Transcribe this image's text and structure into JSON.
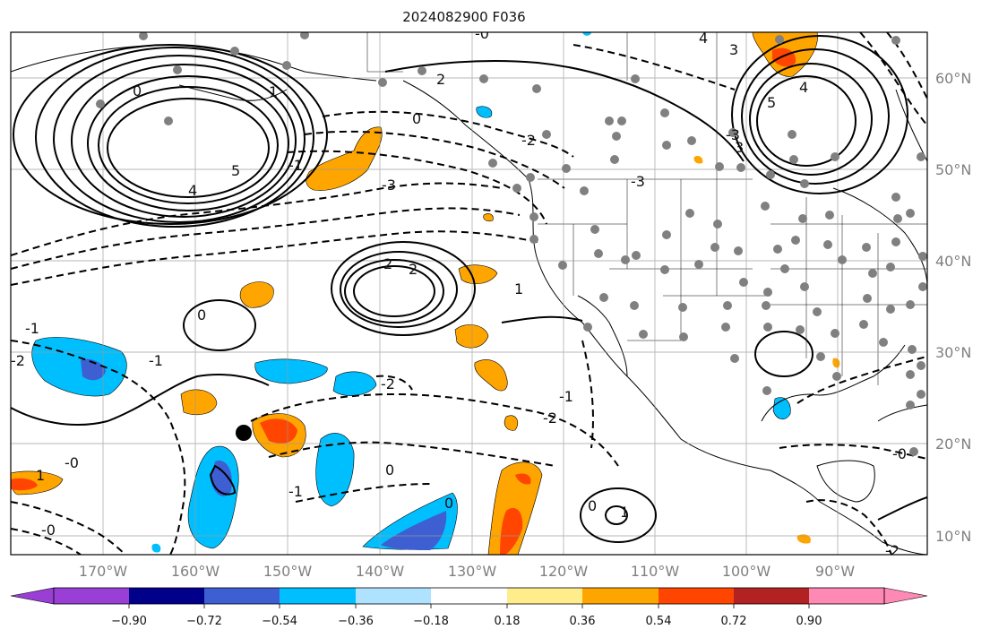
{
  "title": "2024082900 F036",
  "latitude_labels": [
    "60°N",
    "50°N",
    "40°N",
    "30°N",
    "20°N",
    "10°N"
  ],
  "longitude_labels": [
    "170°W",
    "160°W",
    "150°W",
    "140°W",
    "130°W",
    "120°W",
    "110°W",
    "100°W",
    "90°W"
  ],
  "colorbar": {
    "ticks": [
      "−0.90",
      "−0.72",
      "−0.54",
      "−0.36",
      "−0.18",
      "0.18",
      "0.36",
      "0.54",
      "0.72",
      "0.90"
    ],
    "colors": [
      "#9a3fd6",
      "#00008b",
      "#3d5fd1",
      "#00bfff",
      "#aee2ff",
      "#ffffff",
      "#ffec8b",
      "#ffa500",
      "#ff4500",
      "#b22222",
      "#ff89b5"
    ]
  },
  "contour_labels": {
    "solid": [
      "0",
      "1",
      "2",
      "3",
      "4",
      "5",
      "2",
      "2",
      "1",
      "0",
      "0",
      "0",
      "0",
      "1",
      "5",
      "4",
      "3",
      "4",
      "1",
      "0"
    ],
    "dashed": [
      "-2",
      "-3",
      "-3",
      "-2",
      "-1",
      "-1",
      "-2",
      "-2",
      "-1",
      "-0",
      "-0",
      "-0",
      "-0",
      "-1",
      "-1",
      "-2",
      "-3"
    ]
  },
  "point_marker": "black-dot"
}
